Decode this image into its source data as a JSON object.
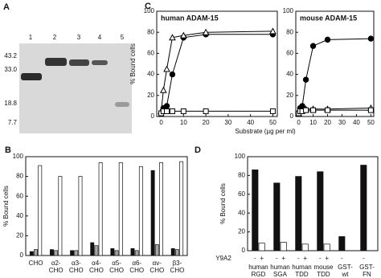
{
  "gel": {
    "panel": "A",
    "lanes": [
      "1",
      "2",
      "3",
      "4",
      "5"
    ],
    "markers": [
      "43.2",
      "33.0",
      "18.8",
      "7.7"
    ]
  },
  "chart_data": [
    {
      "type": "bar",
      "panel": "B",
      "ylabel": "% Bound cells",
      "categories": [
        [
          "CHO"
        ],
        [
          "α2-",
          "CHO"
        ],
        [
          "α3-",
          "CHO"
        ],
        [
          "α4-",
          "CHO"
        ],
        [
          "α5-",
          "CHO"
        ],
        [
          "α6-",
          "CHO"
        ],
        [
          "αv-",
          "CHO"
        ],
        [
          "β3-",
          "CHO"
        ]
      ],
      "series": [
        {
          "color": "#111111",
          "values": [
            4,
            6,
            5,
            13,
            7,
            7,
            86,
            7
          ]
        },
        {
          "color": "#a8a8a8",
          "values": [
            6,
            5,
            5,
            10,
            5,
            5,
            11,
            6
          ]
        },
        {
          "color": "#ffffff",
          "values": [
            91,
            80,
            80,
            94,
            94,
            90,
            94,
            95
          ]
        }
      ],
      "ylim": [
        0,
        100
      ],
      "yticks": [
        0,
        20,
        40,
        60,
        80,
        100
      ]
    },
    {
      "type": "line",
      "panel": "C",
      "title": "human ADAM-15",
      "ylabel": "% Bound cells",
      "xlabel": "Substrate (µg per ml)",
      "xlim": [
        -2,
        52
      ],
      "xticks": [
        0,
        10,
        20,
        30,
        40,
        50
      ],
      "ylim": [
        0,
        100
      ],
      "yticks": [
        0,
        20,
        40,
        60,
        80,
        100
      ],
      "series": [
        {
          "marker": "circle",
          "color": "#000000",
          "fill": "#000000",
          "x": [
            0,
            1,
            2.5,
            5,
            10,
            20,
            50
          ],
          "values": [
            3,
            8,
            10,
            40,
            75,
            78,
            78
          ]
        },
        {
          "marker": "triangle",
          "color": "#000000",
          "fill": "#ffffff",
          "x": [
            0,
            1,
            2.5,
            5,
            10,
            20,
            50
          ],
          "values": [
            5,
            25,
            45,
            75,
            77,
            80,
            81
          ]
        },
        {
          "marker": "square",
          "color": "#000000",
          "fill": "#ffffff",
          "x": [
            0,
            1,
            2.5,
            5,
            10,
            20,
            50
          ],
          "values": [
            3,
            5,
            5,
            5,
            5,
            5,
            5
          ]
        }
      ]
    },
    {
      "type": "line",
      "title": "mouse ADAM-15",
      "xlim": [
        -2,
        52
      ],
      "xticks": [
        0,
        10,
        20,
        30,
        40,
        50
      ],
      "ylim": [
        0,
        100
      ],
      "yticks": [
        0,
        20,
        40,
        60,
        80,
        100
      ],
      "series": [
        {
          "marker": "circle",
          "color": "#000000",
          "fill": "#000000",
          "x": [
            0,
            1,
            2.5,
            5,
            10,
            20,
            50
          ],
          "values": [
            3,
            8,
            10,
            35,
            67,
            73,
            74
          ]
        },
        {
          "marker": "triangle",
          "color": "#000000",
          "fill": "#ffffff",
          "x": [
            0,
            1,
            2.5,
            5,
            10,
            20,
            50
          ],
          "values": [
            3,
            5,
            6,
            7,
            7,
            7,
            8
          ]
        },
        {
          "marker": "square",
          "color": "#000000",
          "fill": "#ffffff",
          "x": [
            0,
            1,
            2.5,
            5,
            10,
            20,
            50
          ],
          "values": [
            3,
            5,
            5,
            6,
            6,
            6,
            6
          ]
        }
      ]
    },
    {
      "type": "bar",
      "panel": "D",
      "ylabel": "% Bound cells",
      "legend_title": "Y9A2",
      "categories": [
        [
          "human",
          "RGD"
        ],
        [
          "human",
          "SGA"
        ],
        [
          "human",
          "TDD"
        ],
        [
          "mouse",
          "TDD"
        ],
        [
          "GST-",
          "wt"
        ],
        [
          "GST-",
          "FN"
        ]
      ],
      "series": [
        {
          "name": "-",
          "color": "#111111",
          "values": [
            86,
            72,
            79,
            84,
            15,
            91
          ]
        },
        {
          "name": "+",
          "color": "#ffffff",
          "values": [
            8,
            9,
            7,
            7,
            null,
            null
          ]
        }
      ],
      "ylim": [
        0,
        100
      ],
      "yticks": [
        0,
        20,
        40,
        60,
        80,
        100
      ]
    }
  ]
}
